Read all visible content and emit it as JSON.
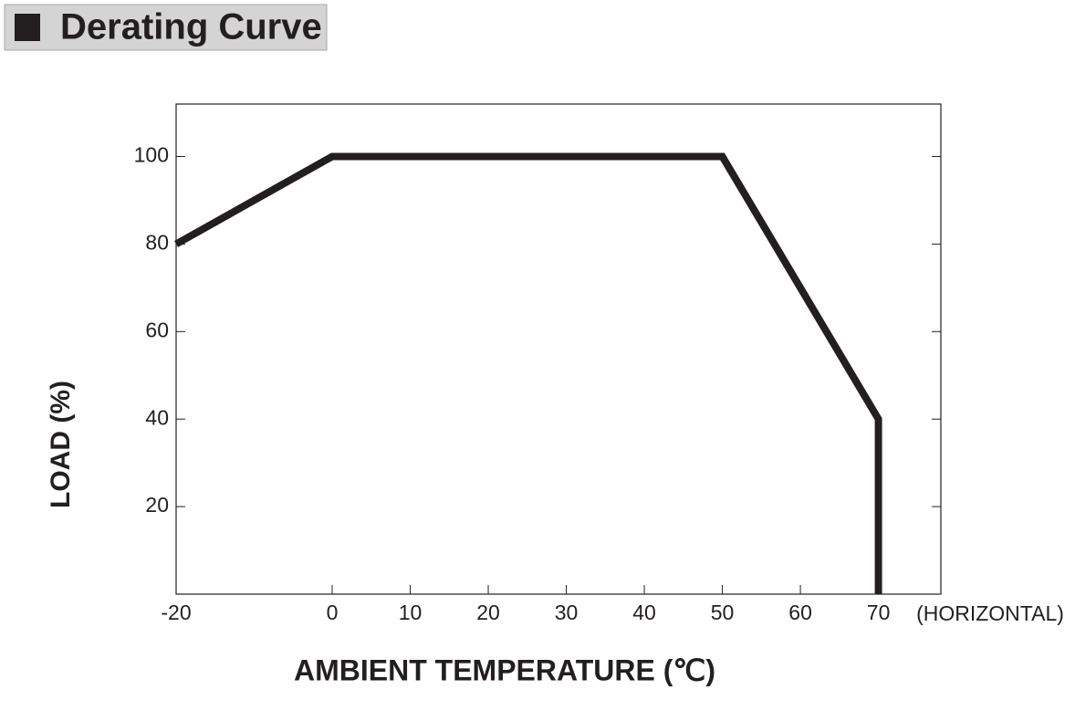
{
  "chart_data": {
    "type": "line",
    "title": "Derating Curve",
    "x_label": "AMBIENT TEMPERATURE (℃)",
    "y_label": "LOAD (%)",
    "annotation": "(HORIZONTAL)",
    "x": [
      -20,
      0,
      50,
      70,
      70
    ],
    "values": [
      80,
      100,
      100,
      40,
      0
    ],
    "color": "#231f20",
    "xlim": [
      -20,
      78
    ],
    "ylim": [
      0,
      112
    ],
    "xticks": [
      -20,
      0,
      10,
      20,
      30,
      40,
      50,
      60,
      70
    ],
    "yticks": [
      20,
      40,
      60,
      80,
      100
    ]
  }
}
